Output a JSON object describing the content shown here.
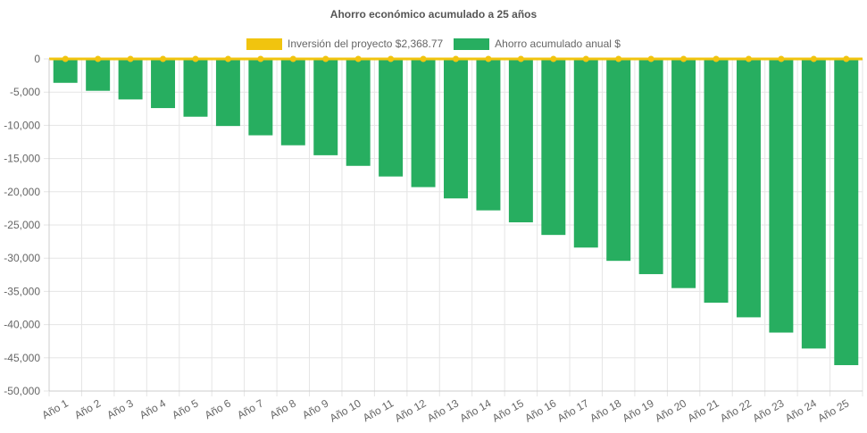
{
  "chart_data": {
    "type": "bar",
    "title": "Ahorro económico acumulado a 25 años",
    "categories": [
      "Año 1",
      "Año 2",
      "Año 3",
      "Año 4",
      "Año 5",
      "Año 6",
      "Año 7",
      "Año 8",
      "Año 9",
      "Año 10",
      "Año 11",
      "Año 12",
      "Año 13",
      "Año 14",
      "Año 15",
      "Año 16",
      "Año 17",
      "Año 18",
      "Año 19",
      "Año 20",
      "Año 21",
      "Año 22",
      "Año 23",
      "Año 24",
      "Año 25"
    ],
    "series": [
      {
        "name": "Inversión del proyecto $2,368.77",
        "kind": "line",
        "color": "#f1c40f",
        "values": [
          0,
          0,
          0,
          0,
          0,
          0,
          0,
          0,
          0,
          0,
          0,
          0,
          0,
          0,
          0,
          0,
          0,
          0,
          0,
          0,
          0,
          0,
          0,
          0,
          0
        ]
      },
      {
        "name": "Ahorro acumulado anual $",
        "kind": "bar",
        "color": "#27ae60",
        "values": [
          -3600,
          -4800,
          -6100,
          -7400,
          -8700,
          -10100,
          -11500,
          -13000,
          -14500,
          -16100,
          -17700,
          -19300,
          -21000,
          -22800,
          -24600,
          -26500,
          -28400,
          -30400,
          -32400,
          -34500,
          -36700,
          -38900,
          -41200,
          -43600,
          -46100
        ]
      }
    ],
    "ylim": [
      -50000,
      0
    ],
    "yticks": [
      0,
      -5000,
      -10000,
      -15000,
      -20000,
      -25000,
      -30000,
      -35000,
      -40000,
      -45000,
      -50000
    ],
    "ytick_labels": [
      "0",
      "-5,000",
      "-10,000",
      "-15,000",
      "-20,000",
      "-25,000",
      "-30,000",
      "-35,000",
      "-40,000",
      "-45,000",
      "-50,000"
    ],
    "grid": true,
    "legend_position": "top"
  }
}
